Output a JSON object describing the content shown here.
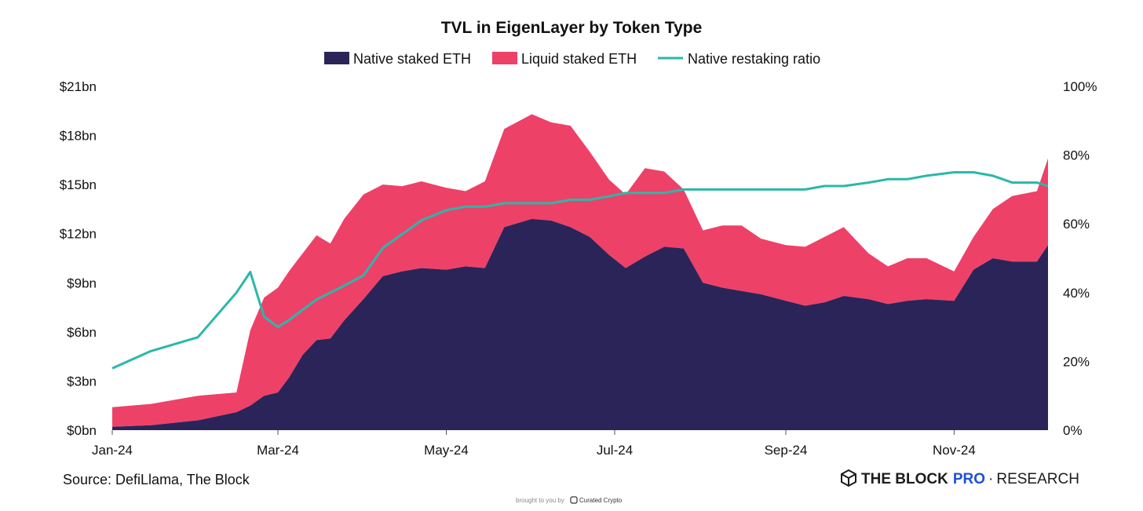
{
  "chart_data": {
    "type": "area",
    "title": "TVL in EigenLayer by Token Type",
    "legend_position": "top-center",
    "grid": false,
    "x_ticks": [
      "Jan-24",
      "Mar-24",
      "May-24",
      "Jul-24",
      "Sep-24",
      "Nov-24"
    ],
    "x_range": [
      "2024-01-01",
      "2024-12-05"
    ],
    "y_left": {
      "ticks": [
        "$0bn",
        "$3bn",
        "$6bn",
        "$9bn",
        "$12bn",
        "$15bn",
        "$18bn",
        "$21bn"
      ],
      "range": [
        0,
        21
      ]
    },
    "y_right": {
      "ticks": [
        "0%",
        "20%",
        "40%",
        "60%",
        "80%",
        "100%"
      ],
      "range": [
        0,
        100
      ]
    },
    "colors": {
      "native": "#2b2458",
      "liquid": "#ee4168",
      "ratio": "#2ab8aa"
    },
    "x": [
      "2024-01-01",
      "2024-01-15",
      "2024-02-01",
      "2024-02-15",
      "2024-02-20",
      "2024-02-25",
      "2024-03-01",
      "2024-03-05",
      "2024-03-10",
      "2024-03-15",
      "2024-03-20",
      "2024-03-25",
      "2024-04-01",
      "2024-04-08",
      "2024-04-15",
      "2024-04-22",
      "2024-05-01",
      "2024-05-08",
      "2024-05-15",
      "2024-05-22",
      "2024-06-01",
      "2024-06-08",
      "2024-06-15",
      "2024-06-22",
      "2024-06-29",
      "2024-07-05",
      "2024-07-12",
      "2024-07-19",
      "2024-07-26",
      "2024-08-02",
      "2024-08-09",
      "2024-08-16",
      "2024-08-23",
      "2024-09-01",
      "2024-09-08",
      "2024-09-15",
      "2024-09-22",
      "2024-10-01",
      "2024-10-08",
      "2024-10-15",
      "2024-10-22",
      "2024-11-01",
      "2024-11-08",
      "2024-11-15",
      "2024-11-22",
      "2024-12-01",
      "2024-12-05"
    ],
    "series": [
      {
        "name": "Native staked ETH",
        "values": [
          0.2,
          0.3,
          0.6,
          1.1,
          1.5,
          2.1,
          2.3,
          3.2,
          4.6,
          5.5,
          5.6,
          6.7,
          8.0,
          9.4,
          9.7,
          9.9,
          9.8,
          10.0,
          9.9,
          12.4,
          12.9,
          12.8,
          12.4,
          11.8,
          10.7,
          9.9,
          10.6,
          11.2,
          11.1,
          9.0,
          8.7,
          8.5,
          8.3,
          7.9,
          7.6,
          7.8,
          8.2,
          8.0,
          7.7,
          7.9,
          8.0,
          7.9,
          9.8,
          10.5,
          10.3,
          10.3,
          11.3
        ]
      },
      {
        "name": "Liquid staked ETH",
        "values": [
          1.2,
          1.3,
          1.5,
          1.2,
          4.6,
          6.0,
          6.4,
          6.5,
          6.2,
          6.4,
          5.8,
          6.2,
          6.4,
          5.6,
          5.2,
          5.3,
          5.0,
          4.6,
          5.3,
          6.0,
          6.4,
          6.0,
          6.2,
          5.2,
          4.6,
          4.5,
          5.4,
          4.6,
          3.6,
          3.2,
          3.8,
          4.0,
          3.4,
          3.4,
          3.6,
          4.0,
          4.2,
          2.8,
          2.3,
          2.6,
          2.5,
          1.8,
          2.0,
          3.0,
          4.0,
          4.3,
          5.3
        ]
      },
      {
        "name": "Native restaking ratio",
        "values": [
          18,
          23,
          27,
          40,
          46,
          33,
          30,
          32,
          35,
          38,
          40,
          42,
          45,
          53,
          57,
          61,
          64,
          65,
          65,
          66,
          66,
          66,
          67,
          67,
          68,
          69,
          69,
          69,
          70,
          70,
          70,
          70,
          70,
          70,
          70,
          71,
          71,
          72,
          73,
          73,
          74,
          75,
          75,
          74,
          72,
          72,
          71
        ]
      }
    ]
  },
  "footer": {
    "source": "Source: DefiLlama, The Block",
    "brand_main": "THE BLOCK",
    "brand_pro": "PRO",
    "brand_sep": "·",
    "brand_research": "RESEARCH",
    "credit_prefix": "brought to you by",
    "credit_brand": "Curated Crypto"
  }
}
